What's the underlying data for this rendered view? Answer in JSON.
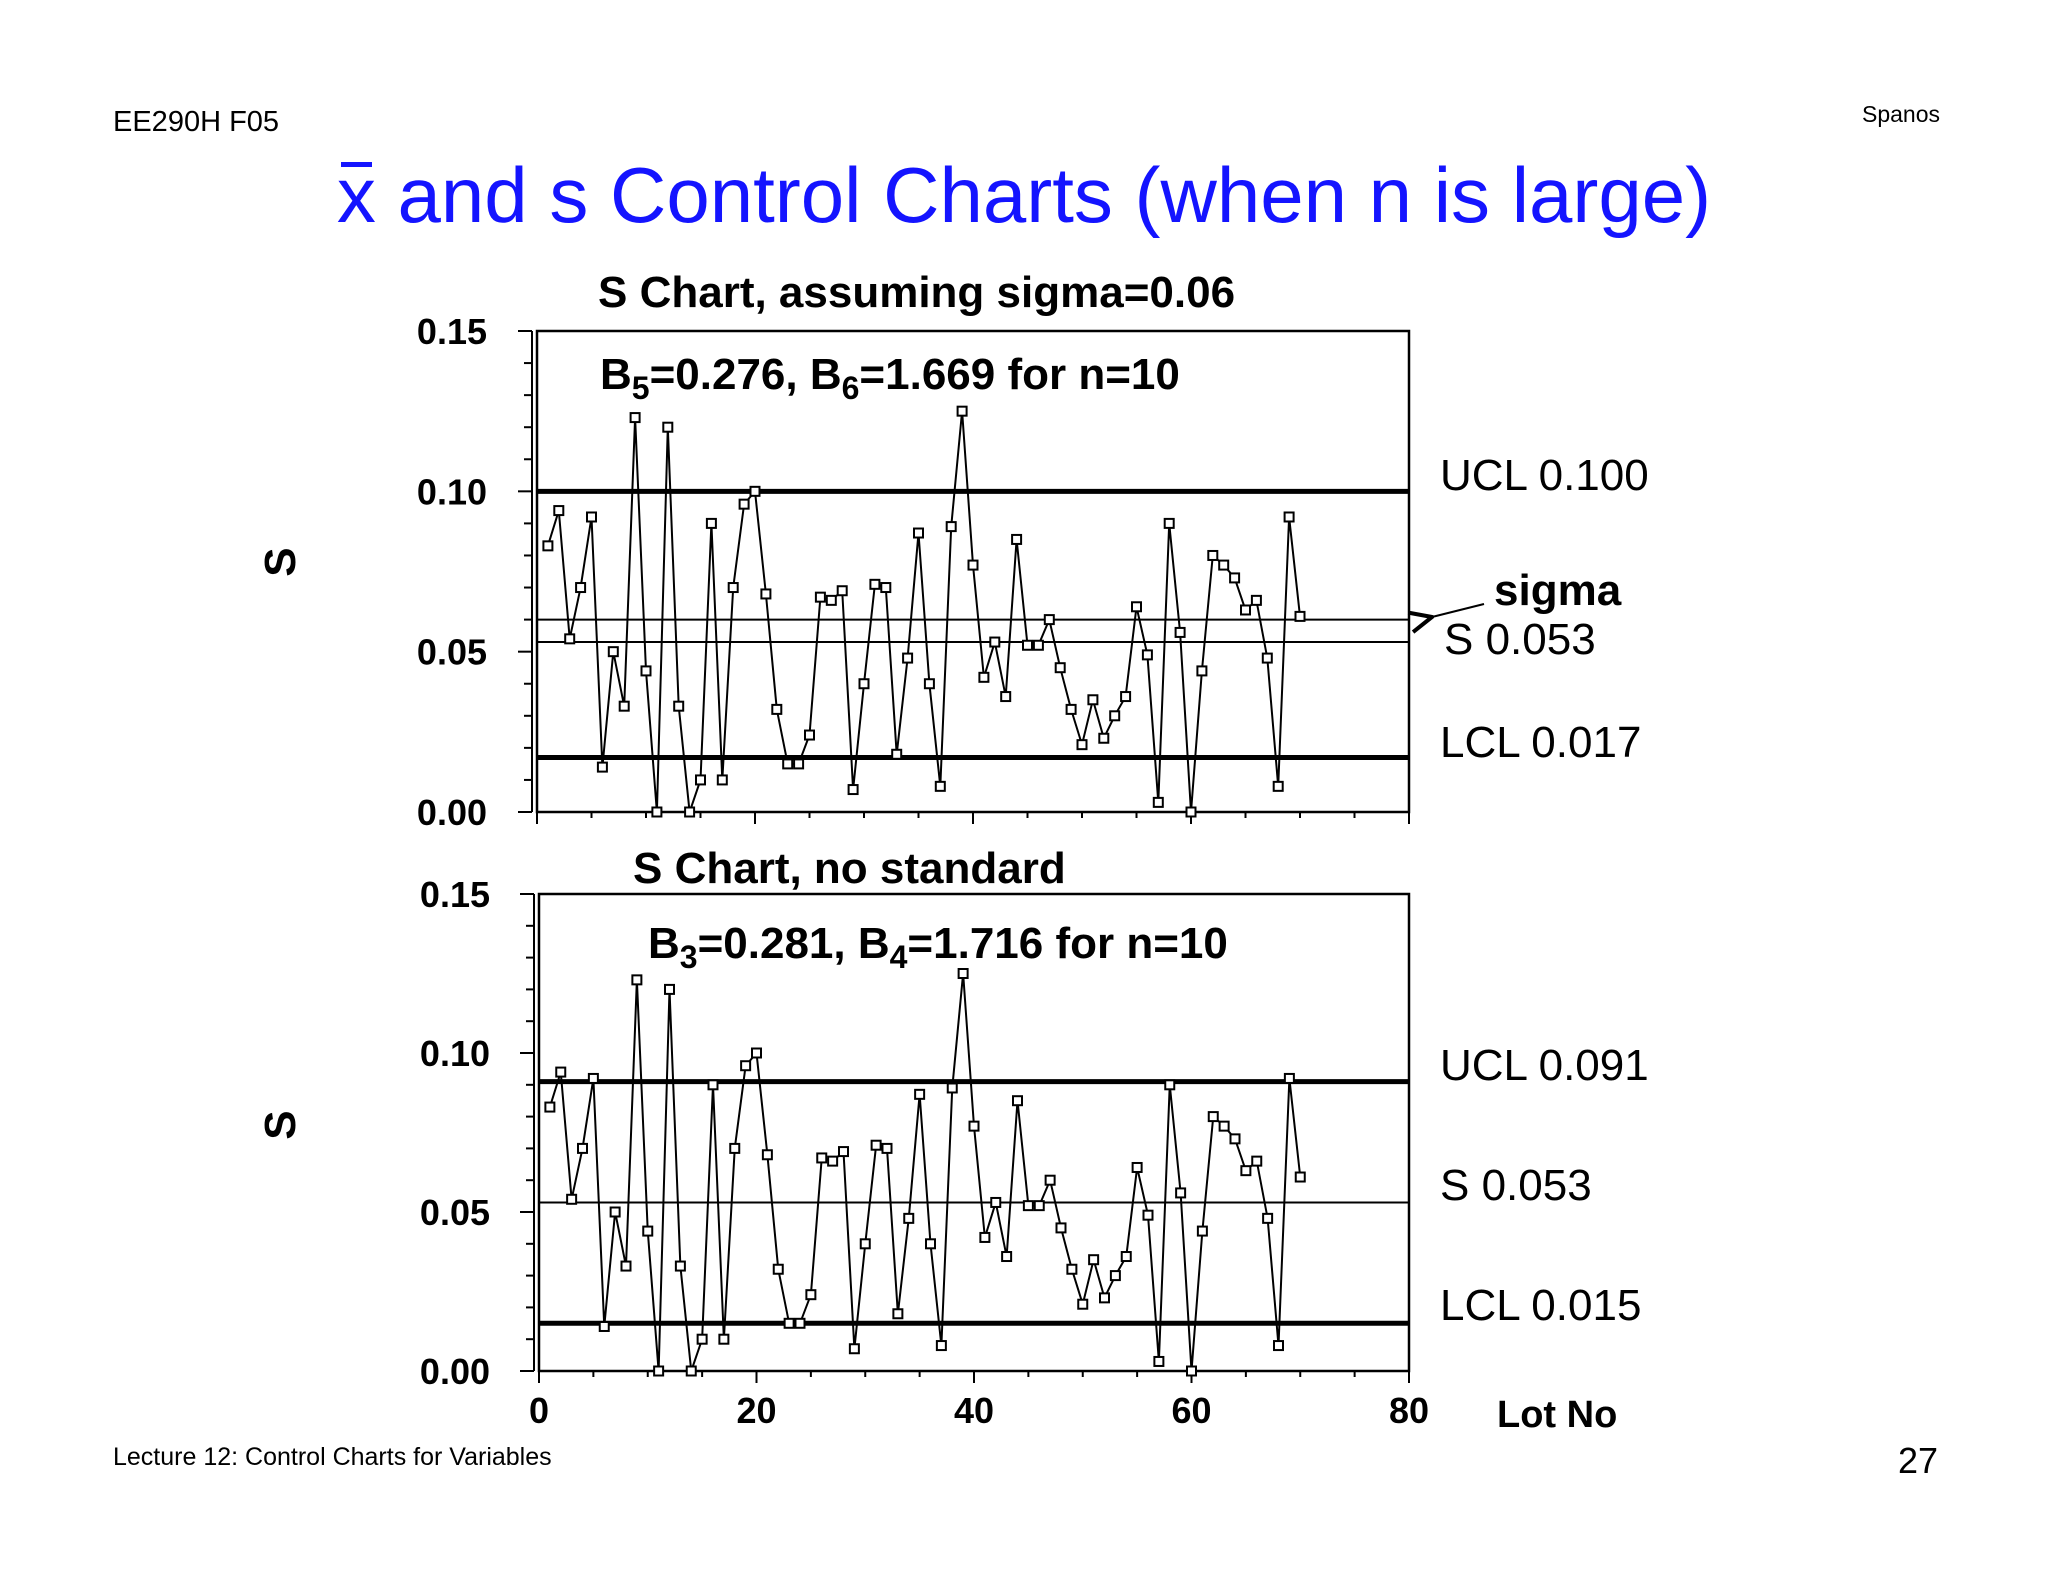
{
  "header": {
    "course": "EE290H F05",
    "author": "Spanos",
    "title_symbol": "x",
    "title_rest": " and s Control Charts (when n is large)"
  },
  "footer": {
    "lecture": "Lecture 12: Control Charts for Variables",
    "page_number": "27"
  },
  "colors": {
    "title": "#1414ff",
    "ink": "#000000"
  },
  "chart_data": [
    {
      "type": "line",
      "title": "S Chart, assuming sigma=0.06",
      "annotation": {
        "b1": "B",
        "b1_sub": "5",
        "b1_val": "=0.276, ",
        "b2": "B",
        "b2_sub": "6",
        "b2_val": "=1.669 for n=10"
      },
      "ylabel": "S",
      "ylim": [
        0,
        0.15
      ],
      "xlim": [
        0,
        80
      ],
      "ytick_labels": [
        "0.15",
        "0.10",
        "0.05",
        "0.00"
      ],
      "xtick_labels": [],
      "lines": [
        {
          "label": "UCL 0.100",
          "y": 0.1,
          "style": "bold"
        },
        {
          "label": "sigma",
          "y": 0.06,
          "style": "thin",
          "arrow": true
        },
        {
          "label": "S 0.053",
          "y": 0.053,
          "style": "thin"
        },
        {
          "label": "LCL 0.017",
          "y": 0.017,
          "style": "bold"
        }
      ],
      "series": [
        {
          "values": [
            0.083,
            0.094,
            0.054,
            0.07,
            0.092,
            0.014,
            0.05,
            0.033,
            0.123,
            0.044,
            0.0,
            0.12,
            0.033,
            0.0,
            0.01,
            0.09,
            0.01,
            0.07,
            0.096,
            0.1,
            0.068,
            0.032,
            0.015,
            0.015,
            0.024,
            0.067,
            0.066,
            0.069,
            0.007,
            0.04,
            0.071,
            0.07,
            0.018,
            0.048,
            0.087,
            0.04,
            0.008,
            0.089,
            0.125,
            0.077,
            0.042,
            0.053,
            0.036,
            0.085,
            0.052,
            0.052,
            0.06,
            0.045,
            0.032,
            0.021,
            0.035,
            0.023,
            0.03,
            0.036,
            0.064,
            0.049,
            0.003,
            0.09,
            0.056,
            0.0,
            0.044,
            0.08,
            0.077,
            0.073,
            0.063,
            0.066,
            0.048,
            0.008,
            0.092,
            0.061
          ]
        }
      ]
    },
    {
      "type": "line",
      "title": "S Chart, no standard",
      "annotation": {
        "b1": "B",
        "b1_sub": "3",
        "b1_val": "=0.281, ",
        "b2": "B",
        "b2_sub": "4",
        "b2_val": "=1.716 for n=10"
      },
      "ylabel": "S",
      "xlabel": "Lot No",
      "ylim": [
        0,
        0.15
      ],
      "xlim": [
        0,
        80
      ],
      "ytick_labels": [
        "0.15",
        "0.10",
        "0.05",
        "0.00"
      ],
      "xtick_labels": [
        "0",
        "20",
        "40",
        "60",
        "80"
      ],
      "lines": [
        {
          "label": "UCL 0.091",
          "y": 0.091,
          "style": "bold"
        },
        {
          "label": "S 0.053",
          "y": 0.053,
          "style": "thin"
        },
        {
          "label": "LCL 0.015",
          "y": 0.015,
          "style": "bold"
        }
      ],
      "series": [
        {
          "values": [
            0.083,
            0.094,
            0.054,
            0.07,
            0.092,
            0.014,
            0.05,
            0.033,
            0.123,
            0.044,
            0.0,
            0.12,
            0.033,
            0.0,
            0.01,
            0.09,
            0.01,
            0.07,
            0.096,
            0.1,
            0.068,
            0.032,
            0.015,
            0.015,
            0.024,
            0.067,
            0.066,
            0.069,
            0.007,
            0.04,
            0.071,
            0.07,
            0.018,
            0.048,
            0.087,
            0.04,
            0.008,
            0.089,
            0.125,
            0.077,
            0.042,
            0.053,
            0.036,
            0.085,
            0.052,
            0.052,
            0.06,
            0.045,
            0.032,
            0.021,
            0.035,
            0.023,
            0.03,
            0.036,
            0.064,
            0.049,
            0.003,
            0.09,
            0.056,
            0.0,
            0.044,
            0.08,
            0.077,
            0.073,
            0.063,
            0.066,
            0.048,
            0.008,
            0.092,
            0.061
          ]
        }
      ]
    }
  ]
}
